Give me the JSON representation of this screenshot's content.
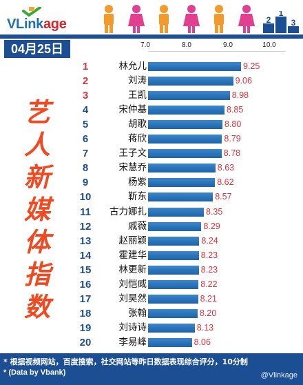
{
  "brand": {
    "name_blue": "VLink",
    "name_red": "age"
  },
  "date": "04月25日",
  "title_chars": [
    "艺",
    "人",
    "新",
    "媒",
    "体",
    "指",
    "数"
  ],
  "footer": {
    "note": "* 根据视频网站，百度搜索，社交网站等昨日数据表现综合评分，10分制",
    "source": "* (Data by Vbank)",
    "watermark": "@Vlinkage"
  },
  "colors": {
    "rank_red": "#e0323c",
    "rank_blue": "#1b4e93",
    "bar": "#2b76bd",
    "header_blue": "#1b4e93",
    "title_orange": "#f04a22"
  },
  "chart_data": {
    "type": "bar",
    "orientation": "horizontal",
    "title": "艺人新媒体指数",
    "x_ticks": [
      "7.0",
      "8.0",
      "9.0",
      "10.0"
    ],
    "xlim": [
      7.0,
      10.0
    ],
    "ranks": [
      "1",
      "2",
      "3",
      "4",
      "5",
      "6",
      "7",
      "8",
      "9",
      "10",
      "11",
      "12",
      "13",
      "14",
      "15",
      "16",
      "17",
      "18",
      "19",
      "20"
    ],
    "categories": [
      "林允儿",
      "刘涛",
      "王凯",
      "宋仲基",
      "胡歌",
      "蒋欣",
      "王子文",
      "宋慧乔",
      "杨紫",
      "靳东",
      "古力娜扎",
      "戚薇",
      "赵丽颖",
      "霍建华",
      "林更新",
      "刘恺威",
      "刘昊然",
      "张翰",
      "刘诗诗",
      "李易峰"
    ],
    "values": [
      9.25,
      9.06,
      8.98,
      8.85,
      8.8,
      8.79,
      8.78,
      8.63,
      8.62,
      8.57,
      8.35,
      8.29,
      8.24,
      8.23,
      8.23,
      8.22,
      8.21,
      8.2,
      8.13,
      8.06
    ],
    "value_labels": [
      "9.25",
      "9.06",
      "8.98",
      "8.85",
      "8.80",
      "8.79",
      "8.78",
      "8.63",
      "8.62",
      "8.57",
      "8.35",
      "8.29",
      "8.24",
      "8.23",
      "8.23",
      "8.22",
      "8.21",
      "8.20",
      "8.13",
      "8.06"
    ]
  }
}
